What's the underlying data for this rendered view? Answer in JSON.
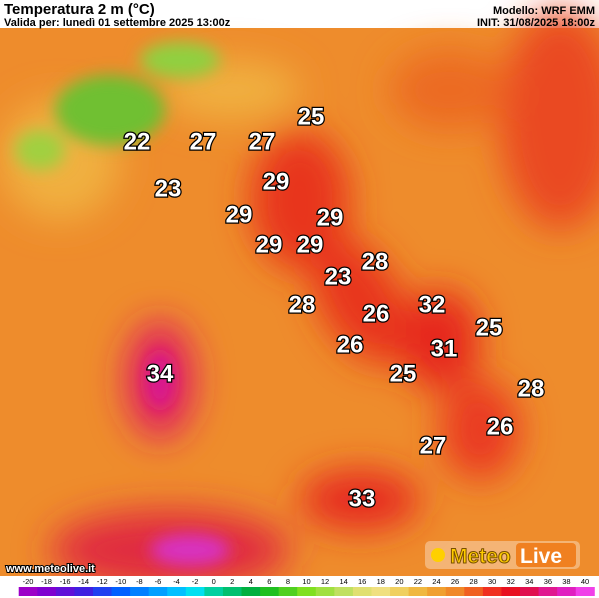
{
  "header": {
    "title": "Temperatura 2 m (°C)",
    "valid": "Valida per: lunedì 01 settembre 2025 13:00z",
    "model": "Modello: WRF EMM",
    "init": "INIT: 31/08/2025 18:00z"
  },
  "labels": [
    22,
    27,
    27,
    25,
    29,
    23,
    29,
    29,
    29,
    29,
    23,
    28,
    28,
    26,
    32,
    25,
    26,
    31,
    34,
    25,
    28,
    26,
    27,
    33
  ],
  "colorbar": {
    "ticks": [
      -20,
      -18,
      -16,
      -14,
      -12,
      -10,
      -8,
      -6,
      -4,
      -2,
      0,
      2,
      4,
      6,
      8,
      10,
      12,
      14,
      16,
      18,
      20,
      22,
      24,
      26,
      28,
      30,
      32,
      34,
      36,
      38,
      40
    ],
    "colors": [
      "#9c00c8",
      "#8000d0",
      "#6010d8",
      "#4020e0",
      "#2040f0",
      "#0060ff",
      "#0080ff",
      "#00a0ff",
      "#00c0ff",
      "#00e0f0",
      "#00d0a0",
      "#00c070",
      "#00b040",
      "#20c020",
      "#50d020",
      "#80e020",
      "#a0e040",
      "#c0e060",
      "#e0e070",
      "#f0e080",
      "#f0d060",
      "#f0b840",
      "#f0a030",
      "#f08828",
      "#f06020",
      "#f03020",
      "#e81020",
      "#e01050",
      "#e01890",
      "#e020c0",
      "#f040e8"
    ]
  },
  "logo": {
    "meteo": "Meteo",
    "live": "Live"
  },
  "website": "www.meteolive.it"
}
